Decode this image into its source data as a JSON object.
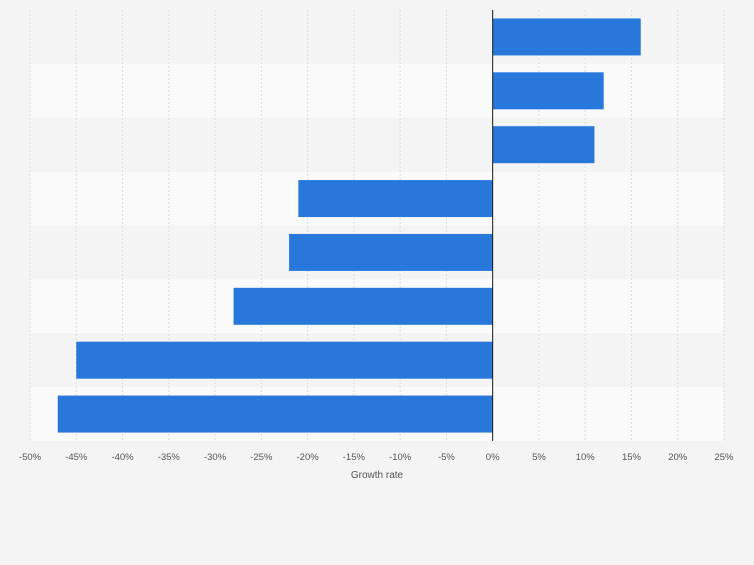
{
  "chart_data": {
    "type": "bar",
    "orientation": "horizontal",
    "xlabel": "Growth rate",
    "ylabel": "",
    "xlim": [
      -50,
      25
    ],
    "x_ticks": [
      -50,
      -45,
      -40,
      -35,
      -30,
      -25,
      -20,
      -15,
      -10,
      -5,
      0,
      5,
      10,
      15,
      20,
      25
    ],
    "x_tick_labels": [
      "-50%",
      "-45%",
      "-40%",
      "-35%",
      "-30%",
      "-25%",
      "-20%",
      "-15%",
      "-10%",
      "-5%",
      "0%",
      "5%",
      "10%",
      "15%",
      "20%",
      "25%"
    ],
    "categories": [
      "",
      "",
      "",
      "",
      "",
      "",
      "",
      ""
    ],
    "values": [
      16,
      12,
      11,
      -21,
      -22,
      -28,
      -45,
      -47
    ],
    "bar_color": "#2878dc",
    "grid": true,
    "row_band_colors": [
      "#f4f4f4",
      "#fafafa"
    ],
    "grid_color": "#dcdcdc",
    "zero_line_color": "#1a1a1a",
    "tick_label_color": "#555555"
  }
}
